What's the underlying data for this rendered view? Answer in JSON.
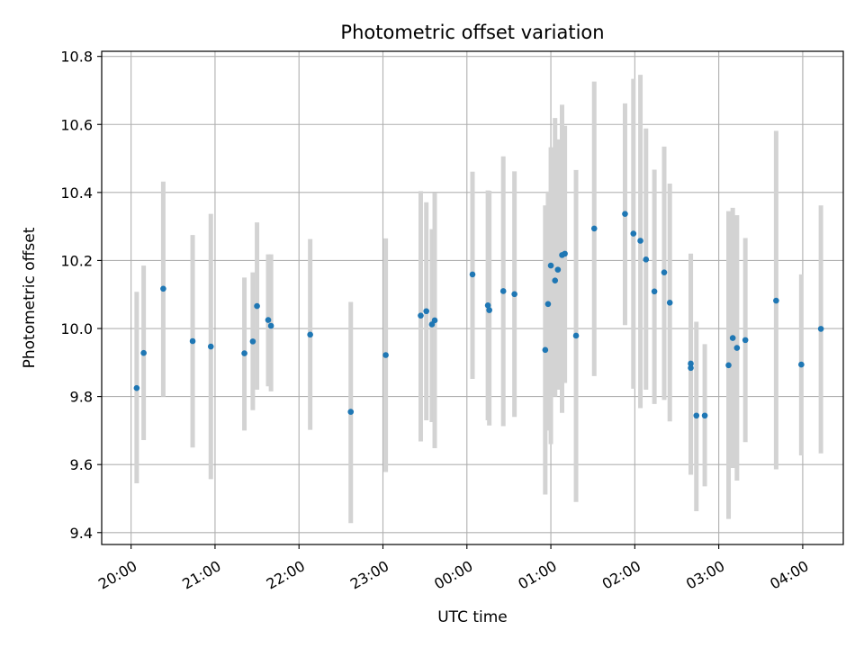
{
  "chart_data": {
    "type": "scatter",
    "title": "Photometric offset variation",
    "xlabel": "UTC time",
    "ylabel": "Photometric offset",
    "x_tick_labels": [
      "20:00",
      "21:00",
      "22:00",
      "23:00",
      "00:00",
      "01:00",
      "02:00",
      "03:00",
      "04:00"
    ],
    "y_tick_labels": [
      "9.4",
      "9.6",
      "9.8",
      "10.0",
      "10.2",
      "10.4",
      "10.6",
      "10.8"
    ],
    "xlim": [
      "19:39",
      "04:29"
    ],
    "ylim": [
      9.365,
      10.815
    ],
    "grid": true,
    "colors": {
      "points": "#1f77b4",
      "error_bars": "#d3d3d3",
      "grid": "#b0b0b0"
    },
    "series": [
      {
        "x": [
          "20:04",
          "20:09",
          "20:23",
          "20:44",
          "20:57",
          "21:21",
          "21:27",
          "21:30",
          "21:38",
          "21:40",
          "22:08",
          "22:37",
          "23:02",
          "23:27",
          "23:31",
          "23:35",
          "23:37",
          "00:04",
          "00:15",
          "00:16",
          "00:26",
          "00:34",
          "00:56",
          "00:58",
          "01:00",
          "01:03",
          "01:05",
          "01:08",
          "01:10",
          "01:18",
          "01:31",
          "01:53",
          "01:59",
          "02:04",
          "02:08",
          "02:14",
          "02:21",
          "02:25",
          "02:40",
          "02:40",
          "02:44",
          "02:50",
          "03:07",
          "03:10",
          "03:13",
          "03:19",
          "03:41",
          "03:59",
          "04:13"
        ],
        "y": [
          9.825,
          9.928,
          10.117,
          9.963,
          9.947,
          9.927,
          9.962,
          10.066,
          10.025,
          10.008,
          9.982,
          9.755,
          9.922,
          10.038,
          10.051,
          10.012,
          10.024,
          10.159,
          10.068,
          10.054,
          10.11,
          10.101,
          9.937,
          10.072,
          10.185,
          10.141,
          10.173,
          10.216,
          10.22,
          9.979,
          10.294,
          10.337,
          10.279,
          10.258,
          10.203,
          10.109,
          10.165,
          10.076,
          9.897,
          9.884,
          9.744,
          9.744,
          9.892,
          9.972,
          9.943,
          9.966,
          10.082,
          9.894,
          9.999
        ],
        "yerr_low": [
          9.545,
          9.672,
          9.8,
          9.65,
          9.557,
          9.7,
          9.76,
          9.82,
          9.83,
          9.815,
          9.702,
          9.428,
          9.578,
          9.668,
          9.73,
          9.725,
          9.648,
          9.852,
          9.73,
          9.715,
          9.713,
          9.74,
          9.512,
          9.7,
          9.66,
          9.8,
          9.82,
          9.752,
          9.84,
          9.49,
          9.86,
          10.01,
          9.823,
          9.766,
          9.82,
          9.778,
          9.79,
          9.727,
          9.57,
          9.57,
          9.463,
          9.536,
          9.44,
          9.59,
          9.553,
          9.666,
          9.586,
          9.627,
          9.633
        ],
        "yerr_high": [
          10.108,
          10.185,
          10.432,
          10.275,
          10.337,
          10.15,
          10.165,
          10.312,
          10.218,
          10.218,
          10.263,
          10.078,
          10.265,
          10.404,
          10.371,
          10.292,
          10.398,
          10.461,
          10.406,
          10.405,
          10.506,
          10.462,
          10.362,
          10.403,
          10.533,
          10.619,
          10.556,
          10.658,
          10.596,
          10.466,
          10.726,
          10.662,
          10.734,
          10.746,
          10.588,
          10.467,
          10.535,
          10.426,
          10.22,
          10.22,
          10.02,
          9.954,
          10.345,
          10.355,
          10.333,
          10.266,
          10.581,
          10.159,
          10.362
        ]
      }
    ]
  }
}
